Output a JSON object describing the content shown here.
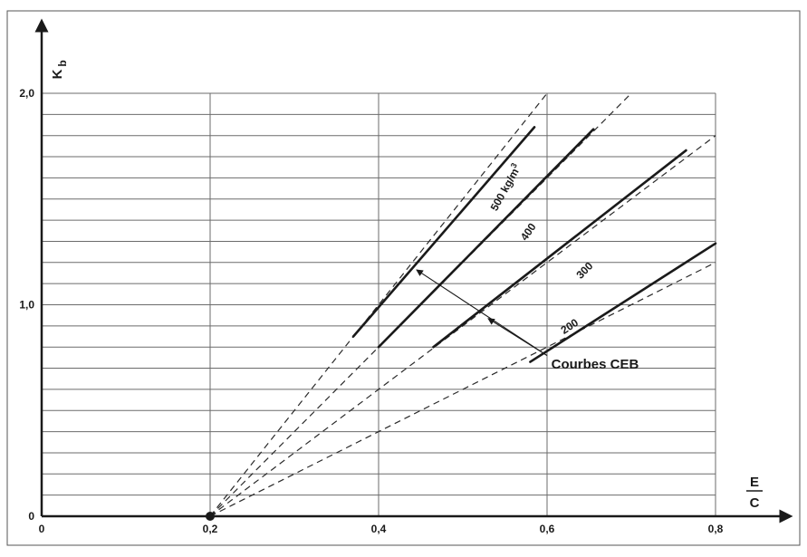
{
  "chart_data": {
    "type": "line",
    "xlabel_num": "E",
    "xlabel_den": "C",
    "ylabel_main": "K",
    "ylabel_sub": "b",
    "xlim": [
      0,
      0.8
    ],
    "ylim": [
      0,
      2.0
    ],
    "x_ticks": [
      {
        "value": 0,
        "label": "0"
      },
      {
        "value": 0.2,
        "label": "0,2"
      },
      {
        "value": 0.4,
        "label": "0,4"
      },
      {
        "value": 0.6,
        "label": "0,6"
      },
      {
        "value": 0.8,
        "label": "0,8"
      }
    ],
    "y_ticks": [
      {
        "value": 0,
        "label": "0"
      },
      {
        "value": 1.0,
        "label": "1,0"
      },
      {
        "value": 2.0,
        "label": "2,0"
      }
    ],
    "grid": true,
    "grid_x_step": 0.2,
    "grid_y_step": 0.1,
    "origin_point": {
      "x": 0.2,
      "y": 0
    },
    "series": [
      {
        "name": "500 kg/m³",
        "label_main": "500 kg/m",
        "label_sup": "3",
        "dashed": [
          [
            0.2,
            0
          ],
          [
            0.6,
            2.0
          ]
        ],
        "solid": [
          [
            0.37,
            0.85
          ],
          [
            0.585,
            1.84
          ]
        ],
        "label_at": [
          0.54,
          1.44
        ],
        "label_angle": -61
      },
      {
        "name": "400",
        "label_main": "400",
        "label_sup": "",
        "dashed": [
          [
            0.2,
            0
          ],
          [
            0.7,
            2.0
          ]
        ],
        "solid": [
          [
            0.4,
            0.8
          ],
          [
            0.655,
            1.83
          ]
        ],
        "label_at": [
          0.575,
          1.3
        ],
        "label_angle": -55
      },
      {
        "name": "300",
        "label_main": "300",
        "label_sup": "",
        "dashed": [
          [
            0.2,
            0
          ],
          [
            0.8,
            1.8
          ]
        ],
        "solid": [
          [
            0.465,
            0.8
          ],
          [
            0.765,
            1.73
          ]
        ],
        "label_at": [
          0.64,
          1.12
        ],
        "label_angle": -45
      },
      {
        "name": "200",
        "label_main": "200",
        "label_sup": "",
        "dashed": [
          [
            0.2,
            0
          ],
          [
            0.8,
            1.2
          ]
        ],
        "solid": [
          [
            0.58,
            0.73
          ],
          [
            0.8,
            1.29
          ]
        ],
        "label_at": [
          0.62,
          0.86
        ],
        "label_angle": -33
      }
    ],
    "annotation": {
      "text": "Courbes CEB",
      "at": [
        0.605,
        0.72
      ],
      "arrow_from": [
        0.6,
        0.76
      ],
      "arrows_to": [
        [
          0.445,
          1.165
        ],
        [
          0.53,
          0.935
        ]
      ]
    }
  }
}
